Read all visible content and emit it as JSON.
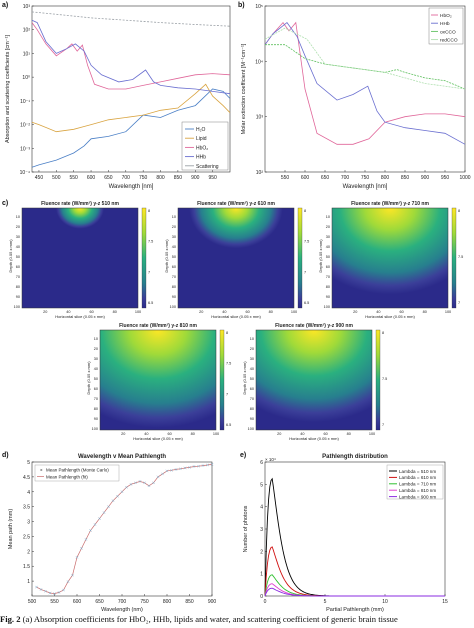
{
  "labels": {
    "a": "a)",
    "b": "b)",
    "c": "c)",
    "d": "d)",
    "e": "e)"
  },
  "caption": {
    "fig": "Fig. 2",
    "text": " (a) Absorption coefficients for HbO₂, HHb, lipids and water, and scattering coefficient of generic brain tissue"
  },
  "colors": {
    "water": "#4a7fc6",
    "lipid": "#d9a441",
    "hbo2": "#e0679a",
    "hhb": "#6a6fd0",
    "scatter": "#9aa0a6",
    "oxccO": "#60c060",
    "redccO": "#b0e0b0"
  },
  "heatmaps": {
    "ylabel": "Depth (0.05 x mm)",
    "xlabel": "Horizontal slice (0.05 x mm)",
    "xticks": [
      "20",
      "40",
      "60",
      "80",
      "100"
    ],
    "yticks": [
      "10",
      "20",
      "30",
      "40",
      "50",
      "60",
      "70",
      "80",
      "90",
      "100"
    ],
    "panels": [
      {
        "title": "Fluence rate (W/mm²) y-z 510 nm",
        "cbar": [
          "8",
          "7.5",
          "7",
          "6.5"
        ],
        "depth": 0.18
      },
      {
        "title": "Fluence rate (W/mm²) y-z 610 nm",
        "cbar": [
          "8",
          "7.5",
          "7",
          "6.5"
        ],
        "depth": 0.35
      },
      {
        "title": "Fluence rate (W/mm²) y-z 710 nm",
        "cbar": [
          "8",
          "7.5",
          "7"
        ],
        "depth": 0.75
      },
      {
        "title": "Fluence rate (W/mm²) y-z 810 nm",
        "cbar": [
          "8",
          "7.5",
          "7",
          "6.5"
        ],
        "depth": 0.85
      },
      {
        "title": "Fluence rate (W/mm²) y-z 900 nm",
        "cbar": [
          "8",
          "7.5",
          "7"
        ],
        "depth": 0.8
      }
    ]
  },
  "chart_data": [
    {
      "id": "a",
      "type": "line",
      "xlabel": "Wavelength [nm]",
      "ylabel": "Absorption and scattering coefficients [cm⁻¹]",
      "xlim": [
        430,
        1000
      ],
      "ylim_log10": [
        -4,
        3
      ],
      "xticks": [
        450,
        500,
        550,
        600,
        650,
        700,
        750,
        800,
        850,
        900,
        950
      ],
      "yticks": [
        "10⁻⁴",
        "10⁻³",
        "10⁻²",
        "10⁻¹",
        "10⁰",
        "10¹",
        "10²",
        "10³"
      ],
      "legend_position": "bottom-right",
      "series": [
        {
          "name": "H₂O",
          "color_key": "water",
          "x": [
            430,
            450,
            500,
            550,
            580,
            600,
            650,
            700,
            750,
            800,
            850,
            900,
            950,
            980,
            1000
          ],
          "log10y": [
            -3.8,
            -3.7,
            -3.5,
            -3.2,
            -2.9,
            -2.6,
            -2.5,
            -2.3,
            -1.6,
            -1.7,
            -1.4,
            -1.2,
            -0.5,
            -0.6,
            -0.9
          ]
        },
        {
          "name": "Lipid",
          "color_key": "lipid",
          "x": [
            430,
            450,
            500,
            550,
            600,
            650,
            700,
            750,
            800,
            850,
            900,
            930,
            950,
            980,
            1000
          ],
          "log10y": [
            -1.9,
            -2.0,
            -2.3,
            -2.2,
            -2.0,
            -1.8,
            -1.7,
            -1.6,
            -1.4,
            -1.3,
            -0.7,
            -0.3,
            -0.8,
            -1.2,
            -1.5
          ]
        },
        {
          "name": "HbO₂",
          "color_key": "hbo2",
          "x": [
            430,
            445,
            470,
            500,
            530,
            545,
            560,
            575,
            590,
            610,
            650,
            700,
            750,
            800,
            850,
            900,
            950,
            1000
          ],
          "log10y": [
            2.3,
            2.0,
            1.4,
            0.9,
            1.2,
            1.4,
            1.1,
            1.35,
            0.5,
            -0.3,
            -0.5,
            -0.5,
            -0.35,
            -0.2,
            -0.05,
            0.1,
            0.15,
            0.1
          ]
        },
        {
          "name": "HHb",
          "color_key": "hhb",
          "x": [
            430,
            445,
            470,
            500,
            530,
            555,
            580,
            600,
            630,
            680,
            720,
            757,
            780,
            800,
            850,
            900,
            950,
            1000
          ],
          "log10y": [
            2.4,
            2.3,
            1.5,
            1.0,
            1.2,
            1.4,
            1.1,
            0.5,
            0.1,
            -0.2,
            -0.1,
            0.3,
            -0.2,
            -0.35,
            -0.45,
            -0.5,
            -0.6,
            -0.7
          ]
        },
        {
          "name": "Scattering",
          "color_key": "scatter",
          "x": [
            430,
            500,
            600,
            700,
            800,
            900,
            1000
          ],
          "log10y": [
            2.75,
            2.65,
            2.5,
            2.4,
            2.3,
            2.22,
            2.15
          ]
        }
      ]
    },
    {
      "id": "b",
      "type": "line",
      "xlabel": "Wavelength [nm]",
      "ylabel": "Molar extinction coefficient [M⁻¹cm⁻¹]",
      "xlim": [
        500,
        1000
      ],
      "ylim_log10": [
        2,
        5
      ],
      "xticks": [
        550,
        600,
        650,
        700,
        750,
        800,
        850,
        900,
        950,
        1000
      ],
      "yticks": [
        "10²",
        "10³",
        "10⁴",
        "10⁵"
      ],
      "legend_position": "top-right",
      "series": [
        {
          "name": "HbO₂",
          "color_key": "hbo2",
          "x": [
            500,
            520,
            545,
            560,
            577,
            600,
            630,
            680,
            720,
            760,
            800,
            850,
            900,
            950,
            1000
          ],
          "log10y": [
            4.3,
            4.5,
            4.7,
            4.55,
            4.7,
            3.5,
            2.7,
            2.5,
            2.5,
            2.6,
            2.9,
            3.0,
            3.05,
            3.05,
            3.0
          ]
        },
        {
          "name": "HHb",
          "color_key": "hhb",
          "x": [
            500,
            520,
            555,
            580,
            600,
            630,
            680,
            720,
            757,
            780,
            800,
            850,
            900,
            950,
            1000
          ],
          "log10y": [
            4.3,
            4.5,
            4.7,
            4.45,
            4.1,
            3.6,
            3.3,
            3.4,
            3.55,
            3.1,
            2.9,
            2.8,
            2.75,
            2.7,
            2.5
          ]
        },
        {
          "name": "oxCCO",
          "color_key": "oxccO",
          "x": [
            500,
            550,
            600,
            650,
            700,
            750,
            800,
            830,
            850,
            900,
            950,
            1000
          ],
          "log10y": [
            4.3,
            4.3,
            4.05,
            3.95,
            3.9,
            3.85,
            3.8,
            3.85,
            3.8,
            3.7,
            3.65,
            3.5
          ]
        },
        {
          "name": "redCCO",
          "color_key": "redccO",
          "x": [
            500,
            550,
            605,
            650,
            700,
            750,
            800,
            850,
            900,
            950,
            1000
          ],
          "log10y": [
            4.4,
            4.6,
            4.4,
            3.95,
            3.9,
            3.85,
            3.8,
            3.7,
            3.6,
            3.55,
            3.5
          ]
        }
      ]
    },
    {
      "id": "d",
      "type": "line",
      "title": "Wavelength v Mean Pathlength",
      "xlabel": "Wavelength (nm)",
      "ylabel": "Mean path (mm)",
      "xlim": [
        500,
        900
      ],
      "ylim": [
        0.5,
        5
      ],
      "xticks": [
        500,
        550,
        600,
        650,
        700,
        750,
        800,
        850,
        900
      ],
      "yticks": [
        1,
        1.5,
        2,
        2.5,
        3,
        3.5,
        4,
        4.5,
        5
      ],
      "legend_position": "top-left",
      "series": [
        {
          "name": "Mean Pathlength (Monte Carlo)",
          "marker": "x",
          "x": [
            510,
            520,
            530,
            540,
            550,
            560,
            570,
            580,
            590,
            600,
            610,
            620,
            630,
            640,
            650,
            660,
            670,
            680,
            690,
            700,
            710,
            720,
            730,
            740,
            750,
            760,
            770,
            780,
            790,
            800,
            810,
            820,
            830,
            840,
            850,
            860,
            870,
            880,
            890,
            900
          ],
          "y": [
            0.8,
            0.72,
            0.66,
            0.6,
            0.58,
            0.62,
            0.7,
            0.98,
            1.2,
            1.8,
            2.1,
            2.4,
            2.7,
            2.9,
            3.1,
            3.3,
            3.5,
            3.7,
            3.85,
            4.0,
            4.15,
            4.25,
            4.3,
            4.35,
            4.3,
            4.2,
            4.3,
            4.5,
            4.6,
            4.7,
            4.72,
            4.75,
            4.77,
            4.8,
            4.82,
            4.85,
            4.86,
            4.88,
            4.9,
            4.92
          ]
        },
        {
          "name": "Mean Pathlength (fit)",
          "x": [
            510,
            520,
            530,
            540,
            550,
            560,
            570,
            580,
            590,
            600,
            610,
            620,
            630,
            640,
            650,
            660,
            670,
            680,
            690,
            700,
            710,
            720,
            730,
            740,
            750,
            760,
            770,
            780,
            790,
            800,
            810,
            820,
            830,
            840,
            850,
            860,
            870,
            880,
            890,
            900
          ],
          "y": [
            0.8,
            0.72,
            0.66,
            0.6,
            0.58,
            0.62,
            0.7,
            0.98,
            1.2,
            1.8,
            2.1,
            2.4,
            2.7,
            2.9,
            3.1,
            3.3,
            3.5,
            3.7,
            3.85,
            4.0,
            4.15,
            4.25,
            4.3,
            4.35,
            4.3,
            4.2,
            4.3,
            4.5,
            4.6,
            4.7,
            4.72,
            4.75,
            4.77,
            4.8,
            4.82,
            4.85,
            4.86,
            4.88,
            4.9,
            4.92
          ]
        }
      ]
    },
    {
      "id": "e",
      "type": "line",
      "title": "Pathlength distribution",
      "xlabel": "Partial Pathlength (mm)",
      "ylabel": "Number of photons",
      "yexponent": "× 10⁴",
      "xlim": [
        0,
        15
      ],
      "ylim": [
        0,
        6
      ],
      "xticks": [
        0,
        5,
        10,
        15
      ],
      "yticks": [
        0,
        1,
        2,
        3,
        4,
        5,
        6
      ],
      "legend_position": "top-right",
      "series": [
        {
          "name": "Lambda = 510 nm",
          "color": "#000000",
          "peak": 5.25
        },
        {
          "name": "Lambda = 610 nm",
          "color": "#d01010",
          "peak": 2.2
        },
        {
          "name": "Lambda = 710 nm",
          "color": "#30c030",
          "peak": 0.95
        },
        {
          "name": "Lambda = 810 nm",
          "color": "#e040d0",
          "peak": 0.55
        },
        {
          "name": "Lambda = 900 nm",
          "color": "#8a2be2",
          "peak": 0.35
        }
      ]
    }
  ]
}
